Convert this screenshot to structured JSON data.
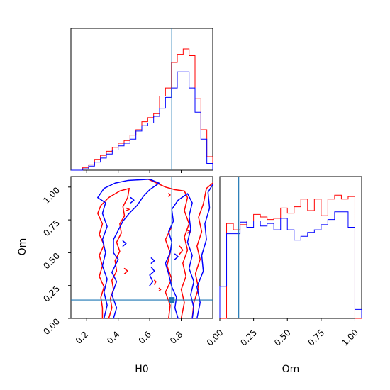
{
  "chart_data": {
    "type": "corner",
    "parameters": [
      "H0",
      "Om"
    ],
    "truth": {
      "H0": 0.74,
      "Om": 0.14
    },
    "colors": {
      "posterior_red": "#ff0000",
      "posterior_blue": "#0000ff",
      "truth_line": "#1f77b4",
      "axes": "#000000"
    },
    "panels": [
      {
        "id": "hist-h0",
        "type": "histogram",
        "x_range": [
          0.1,
          1.0
        ],
        "x_ticks": [
          0.2,
          0.4,
          0.6,
          0.8
        ],
        "show_tick_labels": false,
        "bin_edges": [
          0.1,
          0.1375,
          0.175,
          0.2125,
          0.25,
          0.2875,
          0.325,
          0.3625,
          0.4,
          0.4375,
          0.475,
          0.5125,
          0.55,
          0.5875,
          0.625,
          0.6625,
          0.7,
          0.7375,
          0.775,
          0.8125,
          0.85,
          0.8875,
          0.925,
          0.9625,
          1.0
        ],
        "series": [
          {
            "name": "",
            "color": "#ff0000",
            "values": [
              0.0,
              0.0,
              0.02,
              0.04,
              0.08,
              0.11,
              0.14,
              0.17,
              0.2,
              0.22,
              0.26,
              0.3,
              0.36,
              0.39,
              0.42,
              0.55,
              0.61,
              0.8,
              0.86,
              0.9,
              0.85,
              0.53,
              0.3,
              0.1
            ]
          },
          {
            "name": "",
            "color": "#0000ff",
            "values": [
              0.0,
              0.0,
              0.01,
              0.03,
              0.06,
              0.09,
              0.12,
              0.15,
              0.18,
              0.2,
              0.23,
              0.29,
              0.33,
              0.35,
              0.4,
              0.46,
              0.54,
              0.61,
              0.73,
              0.73,
              0.61,
              0.43,
              0.23,
              0.05
            ]
          }
        ]
      },
      {
        "id": "hist-om",
        "type": "histogram",
        "x_range": [
          0.0,
          1.05
        ],
        "x_ticks": [
          0.0,
          0.25,
          0.5,
          0.75,
          1.0
        ],
        "x_tick_labels": [
          "0.00",
          "0.25",
          "0.50",
          "0.75",
          "1.00"
        ],
        "xlabel": "Om",
        "bin_edges": [
          0.0,
          0.05,
          0.1,
          0.15,
          0.2,
          0.25,
          0.3,
          0.35,
          0.4,
          0.45,
          0.5,
          0.55,
          0.6,
          0.65,
          0.7,
          0.75,
          0.8,
          0.85,
          0.9,
          0.95,
          1.0,
          1.05
        ],
        "series": [
          {
            "name": "",
            "color": "#ff0000",
            "values": [
              0.0,
              0.74,
              0.69,
              0.73,
              0.76,
              0.81,
              0.79,
              0.77,
              0.78,
              0.86,
              0.82,
              0.87,
              0.93,
              0.84,
              0.93,
              0.8,
              0.93,
              0.96,
              0.93,
              0.95,
              0.0
            ]
          },
          {
            "name": "",
            "color": "#0000ff",
            "values": [
              0.25,
              0.66,
              0.66,
              0.75,
              0.71,
              0.76,
              0.72,
              0.74,
              0.69,
              0.78,
              0.69,
              0.61,
              0.64,
              0.67,
              0.69,
              0.73,
              0.77,
              0.83,
              0.83,
              0.71,
              0.07
            ]
          }
        ]
      },
      {
        "id": "contour-h0-om",
        "type": "contour",
        "x_range": [
          0.1,
          1.0
        ],
        "y_range": [
          0.0,
          1.08
        ],
        "x_ticks": [
          0.2,
          0.4,
          0.6,
          0.8
        ],
        "x_tick_labels": [
          "0.2",
          "0.4",
          "0.6",
          "0.8"
        ],
        "y_ticks": [
          0.0,
          0.25,
          0.5,
          0.75,
          1.0
        ],
        "y_tick_labels": [
          "0.00",
          "0.25",
          "0.50",
          "0.75",
          "1.00"
        ],
        "xlabel": "H0",
        "ylabel": "Om",
        "series": [
          {
            "name": "",
            "color": "#ff0000",
            "paths": [
              [
                [
                  0.3,
                  0.0
                ],
                [
                  0.3,
                  0.08
                ],
                [
                  0.29,
                  0.16
                ],
                [
                  0.31,
                  0.24
                ],
                [
                  0.28,
                  0.32
                ],
                [
                  0.3,
                  0.4
                ],
                [
                  0.28,
                  0.48
                ],
                [
                  0.31,
                  0.56
                ],
                [
                  0.28,
                  0.64
                ],
                [
                  0.3,
                  0.72
                ],
                [
                  0.27,
                  0.8
                ],
                [
                  0.29,
                  0.86
                ],
                [
                  0.34,
                  0.92
                ],
                [
                  0.41,
                  0.97
                ],
                [
                  0.47,
                  0.99
                ],
                [
                  0.46,
                  0.92
                ],
                [
                  0.43,
                  0.85
                ],
                [
                  0.44,
                  0.78
                ],
                [
                  0.41,
                  0.72
                ],
                [
                  0.42,
                  0.65
                ],
                [
                  0.39,
                  0.58
                ],
                [
                  0.41,
                  0.51
                ],
                [
                  0.38,
                  0.44
                ],
                [
                  0.39,
                  0.36
                ],
                [
                  0.36,
                  0.29
                ],
                [
                  0.37,
                  0.22
                ],
                [
                  0.35,
                  0.15
                ],
                [
                  0.36,
                  0.08
                ],
                [
                  0.34,
                  0.0
                ]
              ],
              [
                [
                  0.59,
                  1.06
                ],
                [
                  0.7,
                  1.0
                ],
                [
                  0.76,
                  0.98
                ],
                [
                  0.82,
                  0.97
                ],
                [
                  0.84,
                  0.92
                ],
                [
                  0.82,
                  0.82
                ],
                [
                  0.85,
                  0.72
                ],
                [
                  0.82,
                  0.62
                ],
                [
                  0.84,
                  0.52
                ],
                [
                  0.81,
                  0.42
                ],
                [
                  0.83,
                  0.32
                ],
                [
                  0.8,
                  0.22
                ],
                [
                  0.82,
                  0.12
                ],
                [
                  0.8,
                  0.0
                ]
              ],
              [
                [
                  0.87,
                  0.0
                ],
                [
                  0.88,
                  0.12
                ],
                [
                  0.91,
                  0.23
                ],
                [
                  0.89,
                  0.34
                ],
                [
                  0.92,
                  0.45
                ],
                [
                  0.9,
                  0.55
                ],
                [
                  0.93,
                  0.66
                ],
                [
                  0.91,
                  0.77
                ],
                [
                  0.94,
                  0.87
                ],
                [
                  0.96,
                  0.99
                ],
                [
                  1.0,
                  1.03
                ]
              ],
              [
                [
                  0.72,
                  0.0
                ],
                [
                  0.73,
                  0.1
                ],
                [
                  0.7,
                  0.2
                ],
                [
                  0.74,
                  0.3
                ],
                [
                  0.71,
                  0.4
                ],
                [
                  0.73,
                  0.5
                ],
                [
                  0.7,
                  0.6
                ],
                [
                  0.74,
                  0.7
                ]
              ],
              [
                [
                  0.44,
                  0.34
                ],
                [
                  0.46,
                  0.36
                ],
                [
                  0.44,
                  0.38
                ]
              ],
              [
                [
                  0.45,
                  0.82
                ],
                [
                  0.47,
                  0.83
                ],
                [
                  0.45,
                  0.84
                ]
              ],
              [
                [
                  0.63,
                  0.26
                ],
                [
                  0.64,
                  0.28
                ],
                [
                  0.63,
                  0.29
                ]
              ],
              [
                [
                  0.66,
                  0.21
                ],
                [
                  0.67,
                  0.22
                ],
                [
                  0.66,
                  0.23
                ]
              ],
              [
                [
                  0.79,
                  0.49
                ],
                [
                  0.81,
                  0.52
                ],
                [
                  0.79,
                  0.55
                ]
              ],
              [
                [
                  0.84,
                  0.65
                ],
                [
                  0.86,
                  0.66
                ],
                [
                  0.84,
                  0.67
                ]
              ],
              [
                [
                  0.72,
                  0.93
                ],
                [
                  0.73,
                  0.94
                ],
                [
                  0.72,
                  0.95
                ]
              ]
            ]
          },
          {
            "name": "",
            "color": "#0000ff",
            "paths": [
              [
                [
                  0.31,
                  0.0
                ],
                [
                  0.33,
                  0.1
                ],
                [
                  0.31,
                  0.2
                ],
                [
                  0.33,
                  0.3
                ],
                [
                  0.3,
                  0.4
                ],
                [
                  0.32,
                  0.5
                ],
                [
                  0.3,
                  0.6
                ],
                [
                  0.33,
                  0.7
                ],
                [
                  0.3,
                  0.8
                ],
                [
                  0.32,
                  0.88
                ],
                [
                  0.27,
                  0.92
                ],
                [
                  0.31,
                  0.99
                ],
                [
                  0.38,
                  1.03
                ],
                [
                  0.46,
                  1.05
                ],
                [
                  0.6,
                  1.06
                ],
                [
                  0.66,
                  1.03
                ],
                [
                  0.6,
                  0.98
                ],
                [
                  0.56,
                  0.93
                ],
                [
                  0.52,
                  0.86
                ],
                [
                  0.47,
                  0.8
                ],
                [
                  0.43,
                  0.74
                ],
                [
                  0.4,
                  0.67
                ],
                [
                  0.37,
                  0.6
                ],
                [
                  0.37,
                  0.5
                ],
                [
                  0.4,
                  0.45
                ],
                [
                  0.36,
                  0.35
                ],
                [
                  0.39,
                  0.28
                ],
                [
                  0.36,
                  0.18
                ],
                [
                  0.39,
                  0.08
                ],
                [
                  0.37,
                  0.0
                ]
              ],
              [
                [
                  0.78,
                  0.0
                ],
                [
                  0.76,
                  0.08
                ],
                [
                  0.77,
                  0.16
                ],
                [
                  0.74,
                  0.24
                ],
                [
                  0.72,
                  0.34
                ],
                [
                  0.7,
                  0.42
                ],
                [
                  0.73,
                  0.5
                ],
                [
                  0.74,
                  0.58
                ],
                [
                  0.72,
                  0.66
                ],
                [
                  0.75,
                  0.74
                ],
                [
                  0.74,
                  0.83
                ],
                [
                  0.78,
                  0.9
                ],
                [
                  0.84,
                  0.95
                ],
                [
                  0.87,
                  0.88
                ],
                [
                  0.85,
                  0.78
                ],
                [
                  0.86,
                  0.68
                ],
                [
                  0.84,
                  0.58
                ],
                [
                  0.87,
                  0.48
                ],
                [
                  0.85,
                  0.38
                ],
                [
                  0.88,
                  0.28
                ],
                [
                  0.86,
                  0.18
                ],
                [
                  0.88,
                  0.08
                ],
                [
                  0.87,
                  0.0
                ]
              ],
              [
                [
                  0.9,
                  0.0
                ],
                [
                  0.92,
                  0.12
                ],
                [
                  0.9,
                  0.24
                ],
                [
                  0.94,
                  0.36
                ],
                [
                  0.93,
                  0.48
                ],
                [
                  0.96,
                  0.6
                ],
                [
                  0.95,
                  0.72
                ],
                [
                  0.98,
                  0.84
                ],
                [
                  0.97,
                  0.96
                ],
                [
                  1.0,
                  1.02
                ]
              ],
              [
                [
                  0.6,
                  0.25
                ],
                [
                  0.62,
                  0.28
                ],
                [
                  0.6,
                  0.33
                ],
                [
                  0.63,
                  0.36
                ],
                [
                  0.61,
                  0.39
                ]
              ],
              [
                [
                  0.43,
                  0.55
                ],
                [
                  0.45,
                  0.57
                ],
                [
                  0.43,
                  0.59
                ]
              ],
              [
                [
                  0.48,
                  0.88
                ],
                [
                  0.5,
                  0.9
                ],
                [
                  0.48,
                  0.92
                ]
              ],
              [
                [
                  0.61,
                  0.42
                ],
                [
                  0.63,
                  0.44
                ],
                [
                  0.61,
                  0.46
                ]
              ],
              [
                [
                  0.76,
                  0.45
                ],
                [
                  0.78,
                  0.47
                ],
                [
                  0.76,
                  0.49
                ]
              ]
            ]
          }
        ]
      }
    ]
  }
}
